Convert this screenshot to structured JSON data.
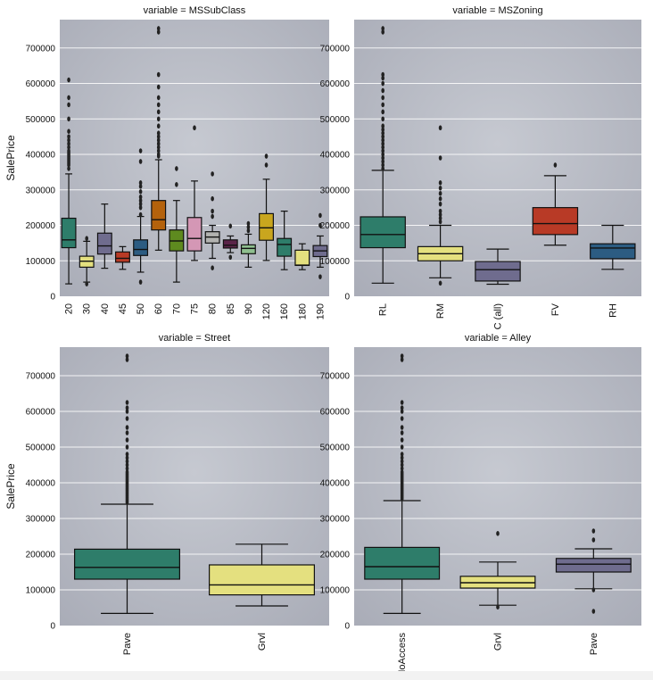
{
  "styling": {
    "plot_background": "#b3b6c0",
    "grid_color": "#ffffff",
    "box_edge": "#111111"
  },
  "chart_data": [
    {
      "type": "box",
      "title": "variable = MSSubClass",
      "ylabel": "SalePrice",
      "xlabel": "",
      "ylim": [
        0,
        780000
      ],
      "yticks": [
        0,
        100000,
        200000,
        300000,
        400000,
        500000,
        600000,
        700000
      ],
      "grid": true,
      "categories": [
        "20",
        "30",
        "40",
        "45",
        "50",
        "60",
        "70",
        "75",
        "80",
        "85",
        "90",
        "120",
        "160",
        "180",
        "190"
      ],
      "colors": [
        "#2e7d6a",
        "#e4e07f",
        "#6f6c8e",
        "#b83a26",
        "#2c5c82",
        "#b4620c",
        "#5e8a1f",
        "#d497b5",
        "#b2b2b0",
        "#5a2348",
        "#8fbf8f",
        "#c9a61e",
        "#2e7d6a",
        "#e4e07f",
        "#6f6c8e"
      ],
      "boxes": [
        {
          "whislo": 35000,
          "q1": 137000,
          "med": 159000,
          "q3": 220000,
          "whishi": 345000,
          "fliers": [
            360000,
            370000,
            375000,
            380000,
            385000,
            390000,
            395000,
            400000,
            405000,
            410000,
            420000,
            430000,
            440000,
            450000,
            465000,
            500000,
            540000,
            560000,
            610000
          ]
        },
        {
          "whislo": 40000,
          "q1": 82000,
          "med": 99000,
          "q3": 113000,
          "whishi": 155000,
          "fliers": [
            35000,
            163000
          ]
        },
        {
          "whislo": 79000,
          "q1": 119000,
          "med": 142000,
          "q3": 178000,
          "whishi": 260000,
          "fliers": []
        },
        {
          "whislo": 76000,
          "q1": 96000,
          "med": 107000,
          "q3": 125000,
          "whishi": 140000,
          "fliers": []
        },
        {
          "whislo": 68000,
          "q1": 115000,
          "med": 132000,
          "q3": 159000,
          "whishi": 225000,
          "fliers": [
            230000,
            250000,
            260000,
            270000,
            280000,
            295000,
            310000,
            320000,
            380000,
            410000,
            40000
          ]
        },
        {
          "whislo": 130000,
          "q1": 187000,
          "med": 216000,
          "q3": 270000,
          "whishi": 385000,
          "fliers": [
            395000,
            400000,
            410000,
            420000,
            430000,
            440000,
            450000,
            460000,
            480000,
            500000,
            520000,
            540000,
            560000,
            590000,
            625000,
            745000,
            755000
          ]
        },
        {
          "whislo": 40000,
          "q1": 128000,
          "med": 156000,
          "q3": 187000,
          "whishi": 270000,
          "fliers": [
            315000,
            360000
          ]
        },
        {
          "whislo": 101000,
          "q1": 128000,
          "med": 163000,
          "q3": 222000,
          "whishi": 325000,
          "fliers": [
            475000
          ]
        },
        {
          "whislo": 107000,
          "q1": 150000,
          "med": 167000,
          "q3": 182000,
          "whishi": 200000,
          "fliers": [
            80000,
            225000,
            240000,
            275000,
            345000
          ]
        },
        {
          "whislo": 123000,
          "q1": 136000,
          "med": 144000,
          "q3": 159000,
          "whishi": 170000,
          "fliers": [
            198000,
            110000
          ]
        },
        {
          "whislo": 82000,
          "q1": 120000,
          "med": 135000,
          "q3": 145000,
          "whishi": 175000,
          "fliers": [
            185000,
            195000,
            205000
          ]
        },
        {
          "whislo": 101000,
          "q1": 158000,
          "med": 193000,
          "q3": 233000,
          "whishi": 330000,
          "fliers": [
            370000,
            395000
          ]
        },
        {
          "whislo": 75000,
          "q1": 113000,
          "med": 146000,
          "q3": 163000,
          "whishi": 240000,
          "fliers": []
        },
        {
          "whislo": 75000,
          "q1": 87000,
          "med": 88000,
          "q3": 130000,
          "whishi": 148000,
          "fliers": []
        },
        {
          "whislo": 82000,
          "q1": 112000,
          "med": 128000,
          "q3": 143000,
          "whishi": 170000,
          "fliers": [
            55000,
            200000,
            228000
          ]
        }
      ]
    },
    {
      "type": "box",
      "title": "variable = MSZoning",
      "ylabel": "",
      "xlabel": "",
      "ylim": [
        0,
        780000
      ],
      "yticks": [
        0,
        100000,
        200000,
        300000,
        400000,
        500000,
        600000,
        700000
      ],
      "grid": true,
      "categories": [
        "RL",
        "RM",
        "C (all)",
        "FV",
        "RH"
      ],
      "colors": [
        "#2e7d6a",
        "#e4e07f",
        "#6f6c8e",
        "#b83a26",
        "#2c5c82"
      ],
      "boxes": [
        {
          "whislo": 37000,
          "q1": 137000,
          "med": 174000,
          "q3": 224000,
          "whishi": 355000,
          "fliers": [
            360000,
            370000,
            380000,
            390000,
            400000,
            410000,
            420000,
            430000,
            440000,
            450000,
            460000,
            470000,
            480000,
            500000,
            520000,
            540000,
            560000,
            580000,
            600000,
            615000,
            625000,
            745000,
            755000
          ]
        },
        {
          "whislo": 52000,
          "q1": 100000,
          "med": 120000,
          "q3": 140000,
          "whishi": 200000,
          "fliers": [
            37000,
            210000,
            220000,
            230000,
            240000,
            260000,
            275000,
            290000,
            305000,
            320000,
            390000,
            475000
          ]
        },
        {
          "whislo": 34000,
          "q1": 43000,
          "med": 75000,
          "q3": 98000,
          "whishi": 133000,
          "fliers": []
        },
        {
          "whislo": 144000,
          "q1": 174000,
          "med": 205000,
          "q3": 250000,
          "whishi": 340000,
          "fliers": [
            370000
          ]
        },
        {
          "whislo": 76000,
          "q1": 106000,
          "med": 136000,
          "q3": 148000,
          "whishi": 200000,
          "fliers": []
        }
      ]
    },
    {
      "type": "box",
      "title": "variable = Street",
      "ylabel": "SalePrice",
      "xlabel": "",
      "ylim": [
        0,
        780000
      ],
      "yticks": [
        0,
        100000,
        200000,
        300000,
        400000,
        500000,
        600000,
        700000
      ],
      "grid": true,
      "categories": [
        "Pave",
        "Grvl"
      ],
      "colors": [
        "#2e7d6a",
        "#e4e07f"
      ],
      "boxes": [
        {
          "whislo": 34000,
          "q1": 130000,
          "med": 163000,
          "q3": 214000,
          "whishi": 340000,
          "fliers": [
            345000,
            350000,
            355000,
            360000,
            365000,
            370000,
            375000,
            380000,
            385000,
            390000,
            395000,
            400000,
            405000,
            410000,
            415000,
            420000,
            425000,
            430000,
            440000,
            450000,
            460000,
            470000,
            480000,
            500000,
            520000,
            540000,
            555000,
            580000,
            600000,
            610000,
            625000,
            745000,
            755000
          ]
        },
        {
          "whislo": 55000,
          "q1": 86000,
          "med": 114000,
          "q3": 170000,
          "whishi": 228000,
          "fliers": []
        }
      ]
    },
    {
      "type": "box",
      "title": "variable = Alley",
      "ylabel": "",
      "xlabel": "",
      "ylim": [
        0,
        780000
      ],
      "yticks": [
        0,
        100000,
        200000,
        300000,
        400000,
        500000,
        600000,
        700000
      ],
      "grid": true,
      "categories": [
        "NoAccess",
        "Grvl",
        "Pave"
      ],
      "colors": [
        "#2e7d6a",
        "#e4e07f",
        "#6f6c8e"
      ],
      "boxes": [
        {
          "whislo": 34000,
          "q1": 130000,
          "med": 165000,
          "q3": 219000,
          "whishi": 350000,
          "fliers": [
            355000,
            360000,
            365000,
            370000,
            375000,
            380000,
            385000,
            390000,
            395000,
            400000,
            405000,
            410000,
            415000,
            420000,
            425000,
            430000,
            440000,
            450000,
            460000,
            470000,
            480000,
            500000,
            520000,
            540000,
            555000,
            580000,
            600000,
            610000,
            625000,
            745000,
            755000
          ]
        },
        {
          "whislo": 57000,
          "q1": 105000,
          "med": 120000,
          "q3": 138000,
          "whishi": 178000,
          "fliers": [
            52000,
            258000
          ]
        },
        {
          "whislo": 103000,
          "q1": 150000,
          "med": 172000,
          "q3": 188000,
          "whishi": 215000,
          "fliers": [
            100000,
            40000,
            240000,
            265000
          ]
        }
      ]
    }
  ]
}
